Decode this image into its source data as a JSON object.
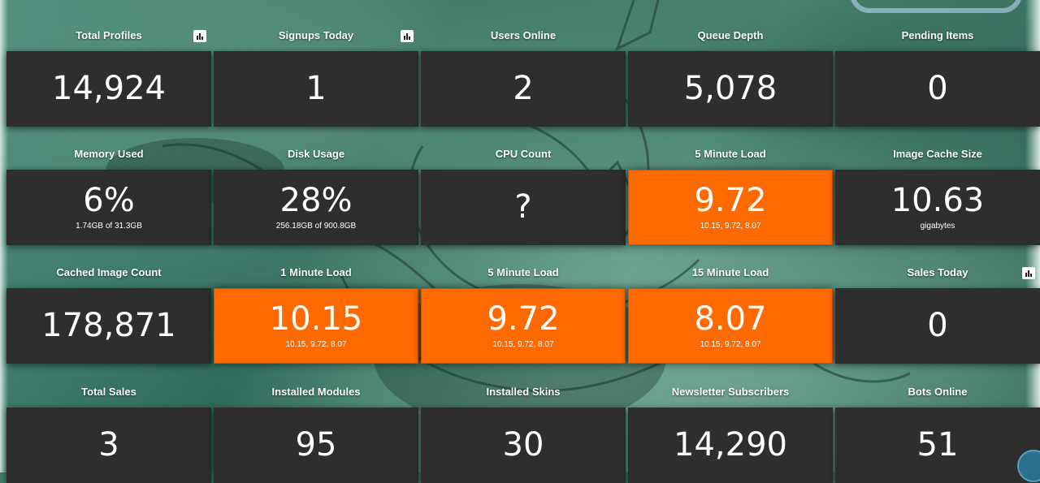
{
  "rows": [
    [
      {
        "title": "Total Profiles",
        "value": "14,924",
        "sub": "",
        "hot": false,
        "chart": true
      },
      {
        "title": "Signups Today",
        "value": "1",
        "sub": "",
        "hot": false,
        "chart": true
      },
      {
        "title": "Users Online",
        "value": "2",
        "sub": "",
        "hot": false,
        "chart": false
      },
      {
        "title": "Queue Depth",
        "value": "5,078",
        "sub": "",
        "hot": false,
        "chart": false
      },
      {
        "title": "Pending Items",
        "value": "0",
        "sub": "",
        "hot": false,
        "chart": false
      }
    ],
    [
      {
        "title": "Memory Used",
        "value": "6%",
        "sub": "1.74GB of 31.3GB",
        "hot": false,
        "chart": false
      },
      {
        "title": "Disk Usage",
        "value": "28%",
        "sub": "256.18GB of 900.8GB",
        "hot": false,
        "chart": false
      },
      {
        "title": "CPU Count",
        "value": "?",
        "sub": "",
        "hot": false,
        "chart": false
      },
      {
        "title": "5 Minute Load",
        "value": "9.72",
        "sub": "10.15, 9.72, 8.07",
        "hot": true,
        "chart": false
      },
      {
        "title": "Image Cache Size",
        "value": "10.63",
        "sub": "gigabytes",
        "hot": false,
        "chart": false
      }
    ],
    [
      {
        "title": "Cached Image Count",
        "value": "178,871",
        "sub": "",
        "hot": false,
        "chart": false
      },
      {
        "title": "1 Minute Load",
        "value": "10.15",
        "sub": "10.15, 9.72, 8.07",
        "hot": true,
        "chart": false
      },
      {
        "title": "5 Minute Load",
        "value": "9.72",
        "sub": "10.15, 9.72, 8.07",
        "hot": true,
        "chart": false
      },
      {
        "title": "15 Minute Load",
        "value": "8.07",
        "sub": "10.15, 9.72, 8.07",
        "hot": true,
        "chart": false
      },
      {
        "title": "Sales Today",
        "value": "0",
        "sub": "",
        "hot": false,
        "chart": true
      }
    ],
    [
      {
        "title": "Total Sales",
        "value": "3",
        "sub": "",
        "hot": false,
        "chart": false
      },
      {
        "title": "Installed Modules",
        "value": "95",
        "sub": "",
        "hot": false,
        "chart": false
      },
      {
        "title": "Installed Skins",
        "value": "30",
        "sub": "",
        "hot": false,
        "chart": false
      },
      {
        "title": "Newsletter Subscribers",
        "value": "14,290",
        "sub": "",
        "hot": false,
        "chart": false
      },
      {
        "title": "Bots Online",
        "value": "51",
        "sub": "",
        "hot": false,
        "chart": false
      }
    ]
  ],
  "colors": {
    "tile": "#2e2e2e",
    "alert": "#ff6a00",
    "text": "#ffffff"
  },
  "icons": {
    "chart_button": "bar-chart-icon"
  }
}
